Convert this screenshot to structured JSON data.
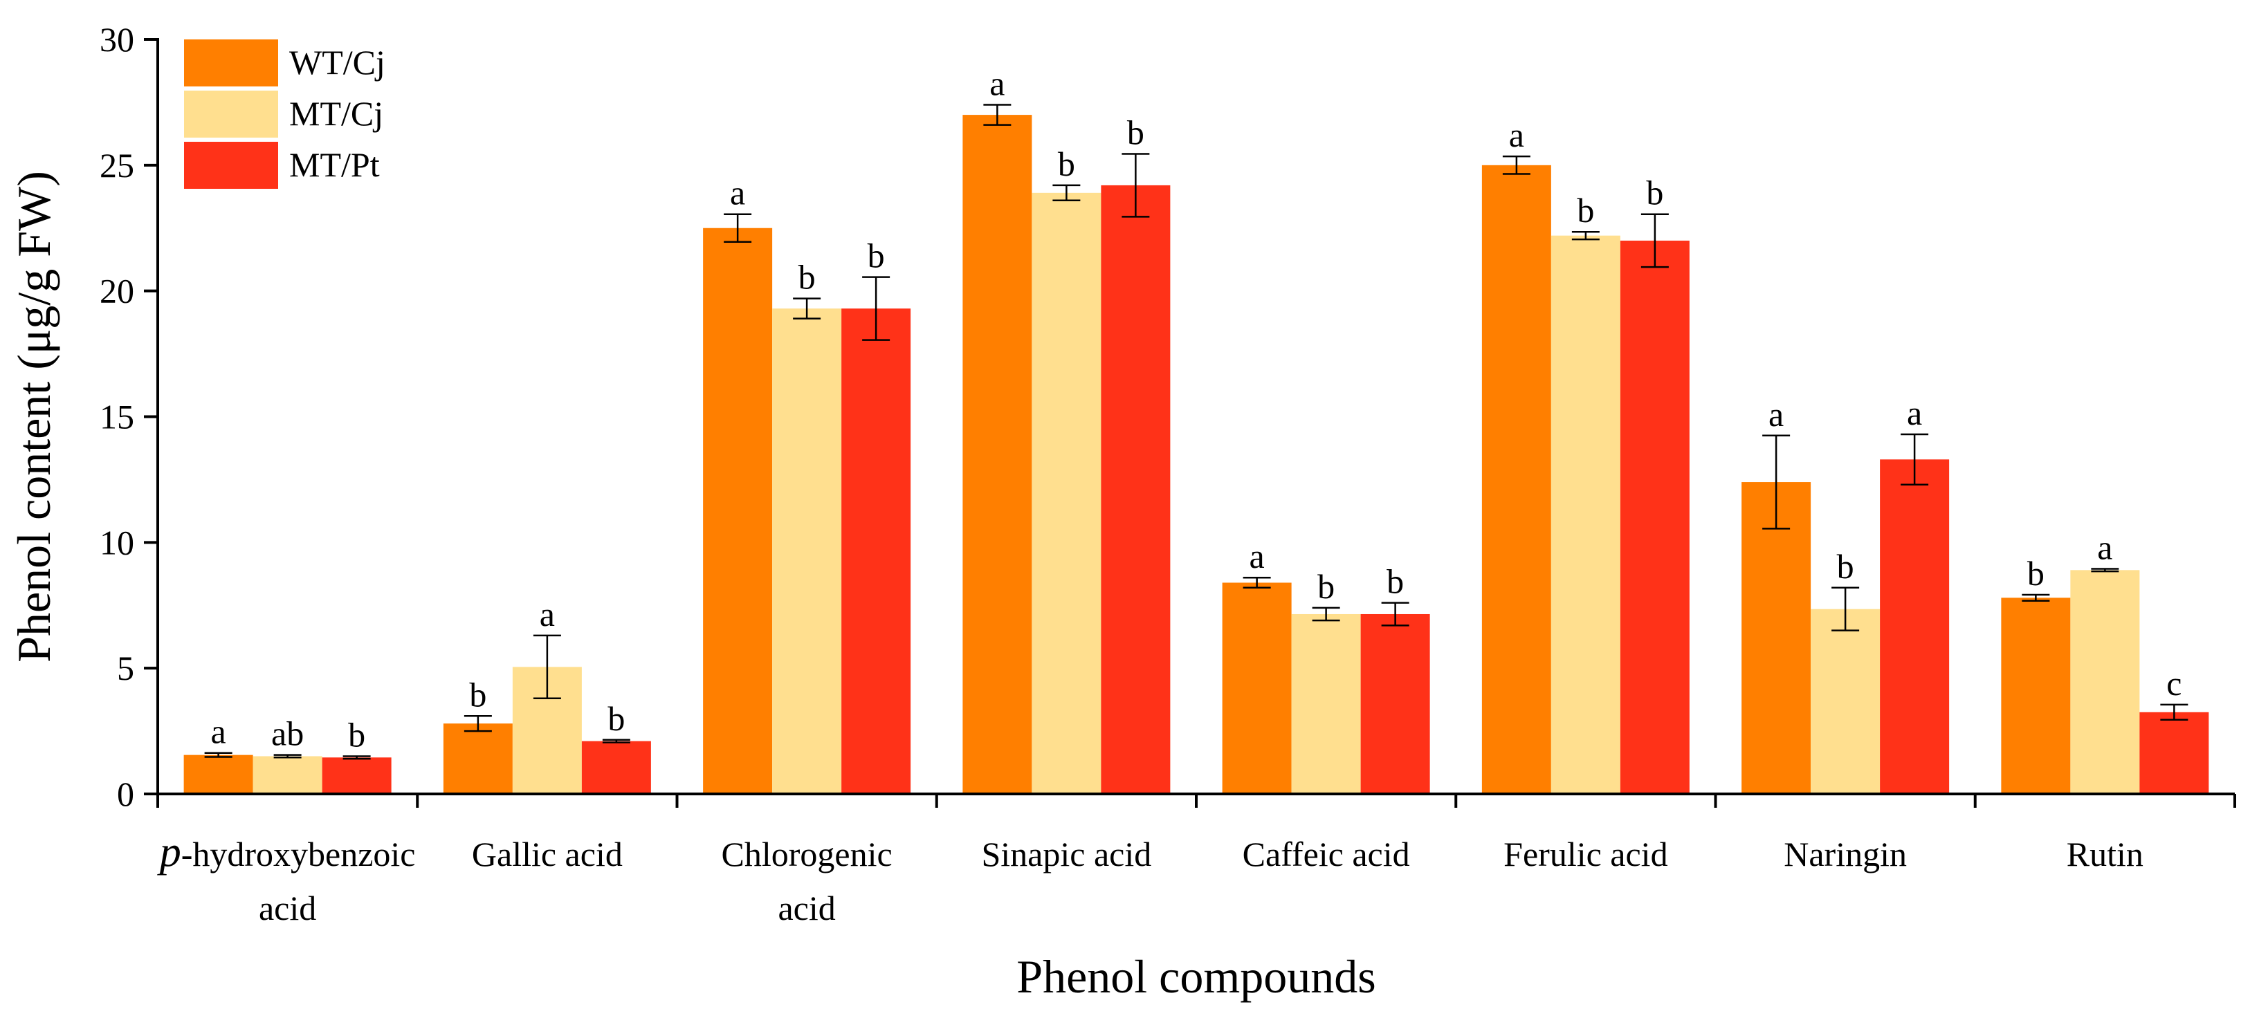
{
  "chart_data": {
    "type": "bar",
    "xlabel": "Phenol compounds",
    "ylabel": "Phenol content (μg/g FW)",
    "ylim": [
      0,
      30
    ],
    "yticks": [
      0,
      5,
      10,
      15,
      20,
      25,
      30
    ],
    "legend_position": "top-left",
    "categories": [
      [
        "p-hydroxybenzoic",
        "acid"
      ],
      [
        "Gallic acid"
      ],
      [
        "Chlorogenic",
        "acid"
      ],
      [
        "Sinapic acid"
      ],
      [
        "Caffeic acid"
      ],
      [
        "Ferulic acid"
      ],
      [
        "Naringin"
      ],
      [
        "Rutin"
      ]
    ],
    "series": [
      {
        "name": "WT/Cj",
        "color": "#FF7F00",
        "values": [
          1.55,
          2.8,
          22.5,
          27.0,
          8.4,
          25.0,
          12.4,
          7.8
        ],
        "errors": [
          0.08,
          0.3,
          0.55,
          0.4,
          0.2,
          0.35,
          1.85,
          0.12
        ],
        "letters": [
          "a",
          "b",
          "a",
          "a",
          "a",
          "a",
          "a",
          "b"
        ]
      },
      {
        "name": "MT/Cj",
        "color": "#FFDF8F",
        "values": [
          1.5,
          5.05,
          19.3,
          23.9,
          7.15,
          22.2,
          7.35,
          8.9
        ],
        "errors": [
          0.05,
          1.25,
          0.4,
          0.3,
          0.25,
          0.15,
          0.85,
          0.05
        ],
        "letters": [
          "ab",
          "a",
          "b",
          "b",
          "b",
          "b",
          "b",
          "a"
        ]
      },
      {
        "name": "MT/Pt",
        "color": "#FF3218",
        "values": [
          1.45,
          2.1,
          19.3,
          24.2,
          7.15,
          22.0,
          13.3,
          3.25
        ],
        "errors": [
          0.05,
          0.05,
          1.25,
          1.25,
          0.45,
          1.05,
          1.0,
          0.3
        ],
        "letters": [
          "b",
          "b",
          "b",
          "b",
          "b",
          "b",
          "a",
          "c"
        ]
      }
    ]
  }
}
